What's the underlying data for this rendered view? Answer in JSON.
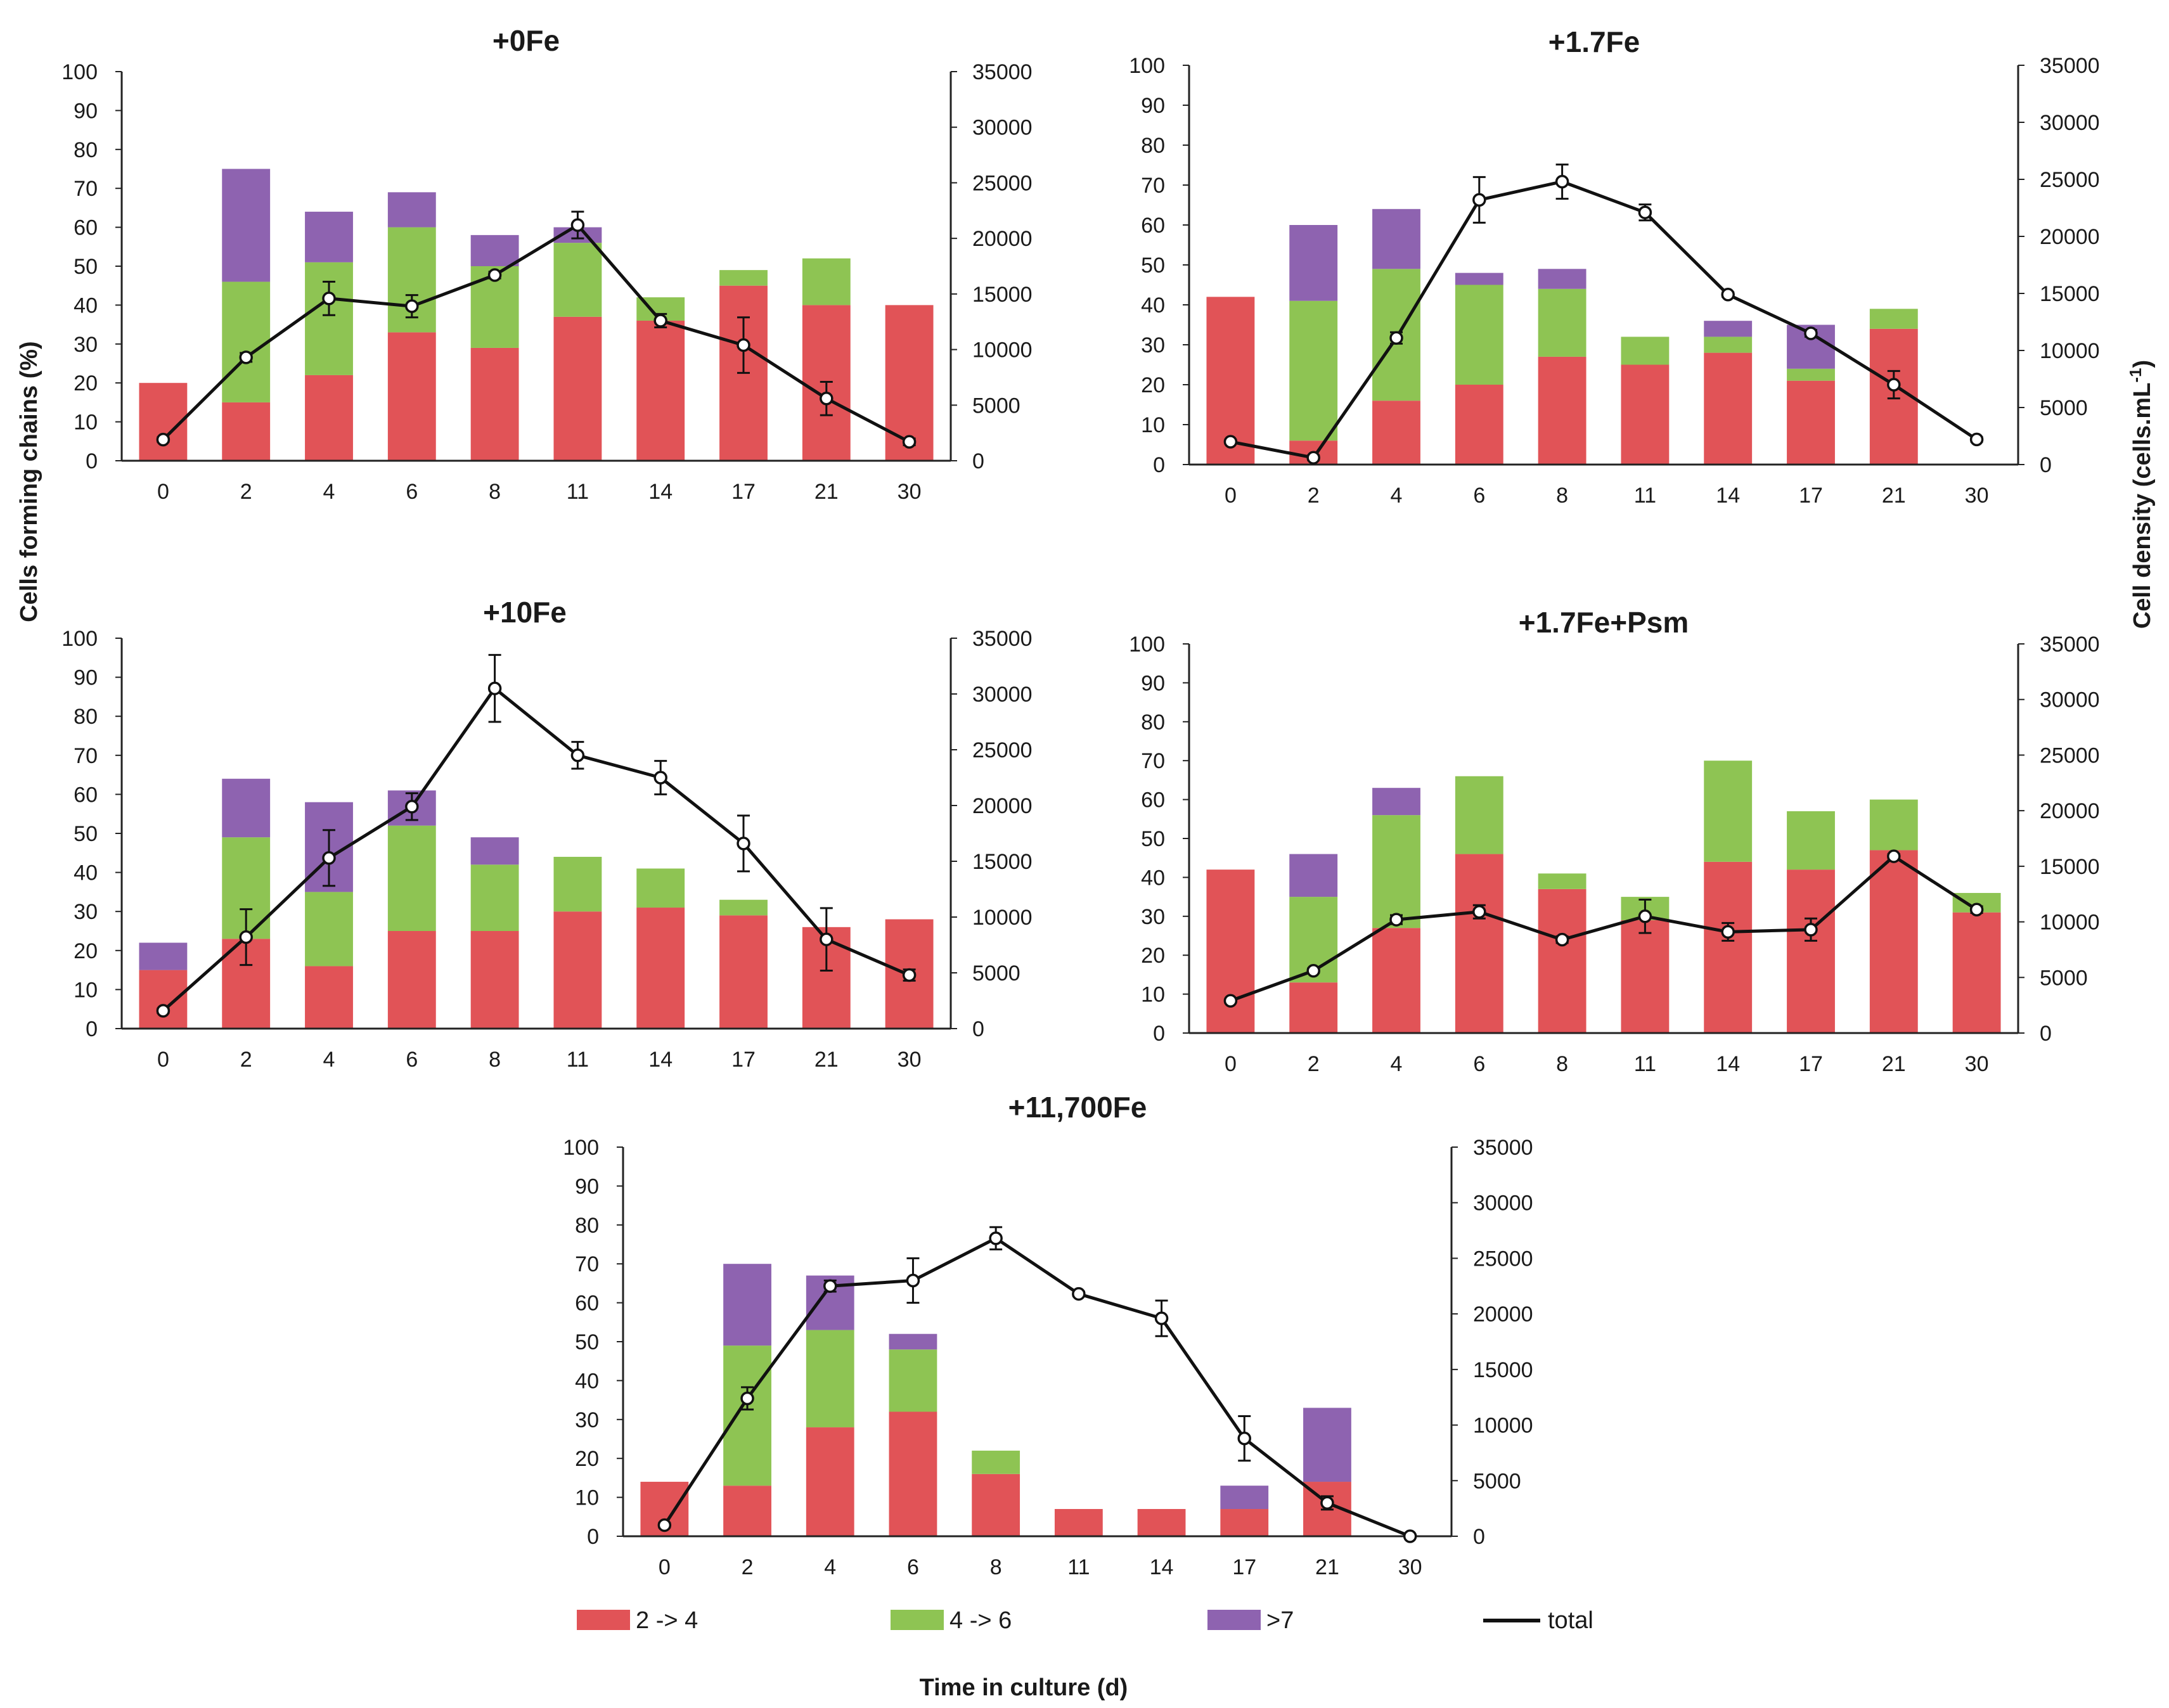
{
  "colors": {
    "band_2_4": "#e15357",
    "band_4_6": "#8ec453",
    "band_gt7": "#8e63b0",
    "total_line": "#111111",
    "axis": "#222222"
  },
  "left_axis_label": "Cells forming chains (%)",
  "right_axis_label": "Cell density (cells.mL",
  "right_axis_label_sup": "-1",
  "right_axis_label_end": ")",
  "x_axis_label": "Time in culture (d)",
  "legend": [
    {
      "key": "band_2_4",
      "label": "2 -> 4",
      "kind": "bar"
    },
    {
      "key": "band_4_6",
      "label": "4 -> 6",
      "kind": "bar"
    },
    {
      "key": "band_gt7",
      "label": ">7",
      "kind": "bar"
    },
    {
      "key": "total",
      "label": "total",
      "kind": "line"
    }
  ],
  "chart_data": [
    {
      "type": "bar+line",
      "title": "+0Fe",
      "categories": [
        "0",
        "2",
        "4",
        "6",
        "8",
        "11",
        "14",
        "17",
        "21",
        "30"
      ],
      "left_ticks": [
        "0",
        "10",
        "20",
        "30",
        "40",
        "50",
        "60",
        "70",
        "80",
        "90",
        "100"
      ],
      "right_ticks": [
        "0",
        "5000",
        "10000",
        "15000",
        "20000",
        "25000",
        "30000",
        "35000"
      ],
      "ylim_left": [
        0,
        100
      ],
      "ylim_right": [
        0,
        35000
      ],
      "series": [
        {
          "name": "2 -> 4",
          "values": [
            20,
            15,
            22,
            33,
            29,
            37,
            36,
            45,
            40,
            40
          ]
        },
        {
          "name": "4 -> 6",
          "values": [
            0,
            31,
            29,
            27,
            21,
            19,
            6,
            4,
            12,
            0
          ]
        },
        {
          "name": ">7",
          "values": [
            0,
            29,
            13,
            9,
            8,
            4,
            0,
            0,
            0,
            0
          ]
        }
      ],
      "total": [
        1900,
        9300,
        14600,
        13900,
        16700,
        21200,
        12600,
        10400,
        5600,
        1700
      ],
      "total_err": [
        200,
        400,
        1500,
        1000,
        300,
        1200,
        600,
        2500,
        1500,
        300
      ]
    },
    {
      "type": "bar+line",
      "title": "+1.7Fe",
      "categories": [
        "0",
        "2",
        "4",
        "6",
        "8",
        "11",
        "14",
        "17",
        "21",
        "30"
      ],
      "left_ticks": [
        "0",
        "10",
        "20",
        "30",
        "40",
        "50",
        "60",
        "70",
        "80",
        "90",
        "100"
      ],
      "right_ticks": [
        "0",
        "5000",
        "10000",
        "15000",
        "20000",
        "25000",
        "30000",
        "35000"
      ],
      "ylim_left": [
        0,
        100
      ],
      "ylim_right": [
        0,
        35000
      ],
      "series": [
        {
          "name": "2 -> 4",
          "values": [
            42,
            6,
            16,
            20,
            27,
            25,
            28,
            21,
            34,
            0
          ]
        },
        {
          "name": "4 -> 6",
          "values": [
            0,
            35,
            33,
            25,
            17,
            7,
            4,
            3,
            5,
            0
          ]
        },
        {
          "name": ">7",
          "values": [
            0,
            19,
            15,
            3,
            5,
            0,
            4,
            11,
            0,
            0
          ]
        }
      ],
      "total": [
        2000,
        600,
        11100,
        23200,
        24800,
        22100,
        14900,
        11500,
        7000,
        2200
      ],
      "total_err": [
        100,
        200,
        500,
        2000,
        1500,
        700,
        200,
        300,
        1200,
        200
      ]
    },
    {
      "type": "bar+line",
      "title": "+10Fe",
      "categories": [
        "0",
        "2",
        "4",
        "6",
        "8",
        "11",
        "14",
        "17",
        "21",
        "30"
      ],
      "left_ticks": [
        "0",
        "10",
        "20",
        "30",
        "40",
        "50",
        "60",
        "70",
        "80",
        "90",
        "100"
      ],
      "right_ticks": [
        "0",
        "5000",
        "10000",
        "15000",
        "20000",
        "25000",
        "30000",
        "35000"
      ],
      "ylim_left": [
        0,
        100
      ],
      "ylim_right": [
        0,
        35000
      ],
      "series": [
        {
          "name": "2 -> 4",
          "values": [
            15,
            23,
            16,
            25,
            25,
            30,
            31,
            29,
            26,
            28
          ]
        },
        {
          "name": "4 -> 6",
          "values": [
            0,
            26,
            19,
            27,
            17,
            14,
            10,
            4,
            0,
            0
          ]
        },
        {
          "name": ">7",
          "values": [
            7,
            15,
            23,
            9,
            7,
            0,
            0,
            0,
            0,
            0
          ]
        }
      ],
      "total": [
        1600,
        8200,
        15300,
        19900,
        30500,
        24500,
        22500,
        16600,
        8000,
        4800
      ],
      "total_err": [
        200,
        2500,
        2500,
        1200,
        3000,
        1200,
        1500,
        2500,
        2800,
        500
      ]
    },
    {
      "type": "bar+line",
      "title": "+1.7Fe+Psm",
      "categories": [
        "0",
        "2",
        "4",
        "6",
        "8",
        "11",
        "14",
        "17",
        "21",
        "30"
      ],
      "left_ticks": [
        "0",
        "10",
        "20",
        "30",
        "40",
        "50",
        "60",
        "70",
        "80",
        "90",
        "100"
      ],
      "right_ticks": [
        "0",
        "5000",
        "10000",
        "15000",
        "20000",
        "25000",
        "30000",
        "35000"
      ],
      "ylim_left": [
        0,
        100
      ],
      "ylim_right": [
        0,
        35000
      ],
      "series": [
        {
          "name": "2 -> 4",
          "values": [
            42,
            13,
            27,
            46,
            37,
            29,
            44,
            42,
            47,
            31
          ]
        },
        {
          "name": "4 -> 6",
          "values": [
            0,
            22,
            29,
            20,
            4,
            6,
            26,
            15,
            13,
            5
          ]
        },
        {
          "name": ">7",
          "values": [
            0,
            11,
            7,
            0,
            0,
            0,
            0,
            0,
            0,
            0
          ]
        }
      ],
      "total": [
        2900,
        5600,
        10200,
        10900,
        8400,
        10500,
        9100,
        9300,
        15900,
        11100
      ],
      "total_err": [
        100,
        200,
        400,
        600,
        300,
        1500,
        800,
        1000,
        200,
        300
      ]
    },
    {
      "type": "bar+line",
      "title": "+11,700Fe",
      "categories": [
        "0",
        "2",
        "4",
        "6",
        "8",
        "11",
        "14",
        "17",
        "21",
        "30"
      ],
      "left_ticks": [
        "0",
        "10",
        "20",
        "30",
        "40",
        "50",
        "60",
        "70",
        "80",
        "90",
        "100"
      ],
      "right_ticks": [
        "0",
        "5000",
        "10000",
        "15000",
        "20000",
        "25000",
        "30000",
        "35000"
      ],
      "ylim_left": [
        0,
        100
      ],
      "ylim_right": [
        0,
        35000
      ],
      "series": [
        {
          "name": "2 -> 4",
          "values": [
            14,
            13,
            28,
            32,
            16,
            7,
            7,
            7,
            14,
            0
          ]
        },
        {
          "name": "4 -> 6",
          "values": [
            0,
            36,
            25,
            16,
            6,
            0,
            0,
            0,
            0,
            0
          ]
        },
        {
          "name": ">7",
          "values": [
            0,
            21,
            14,
            4,
            0,
            0,
            0,
            6,
            19,
            0
          ]
        }
      ],
      "total": [
        1000,
        12400,
        22500,
        23000,
        26800,
        21800,
        19600,
        8800,
        3000,
        0
      ],
      "total_err": [
        200,
        1000,
        500,
        2000,
        1000,
        200,
        1600,
        2000,
        600,
        100
      ]
    }
  ]
}
